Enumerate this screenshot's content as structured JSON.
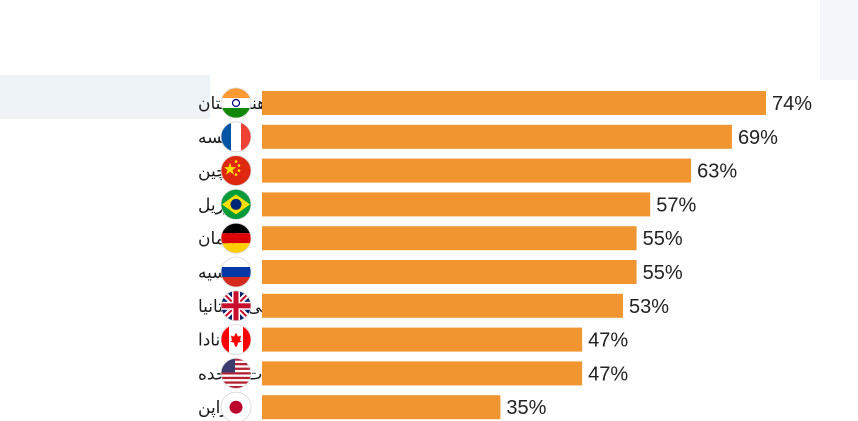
{
  "chart_data": {
    "type": "bar",
    "orientation": "horizontal",
    "title": "",
    "xlabel": "",
    "ylabel": "",
    "xlim": [
      0,
      100
    ],
    "grid": false,
    "legend": "none",
    "bar_color": "#F0952F",
    "categories": [
      "هندوستان",
      "فرانسه",
      "چین",
      "برزیل",
      "آلمان",
      "روسیه",
      "پادشاهی بریتانیا",
      "کانادا",
      "ایالات متحده",
      "ژاپن"
    ],
    "flags": [
      "india-flag-icon",
      "france-flag-icon",
      "china-flag-icon",
      "brazil-flag-icon",
      "germany-flag-icon",
      "russia-flag-icon",
      "uk-flag-icon",
      "canada-flag-icon",
      "usa-flag-icon",
      "japan-flag-icon"
    ],
    "values": [
      74,
      69,
      63,
      57,
      55,
      55,
      53,
      47,
      47,
      35
    ],
    "value_labels": [
      "74%",
      "69%",
      "63%",
      "57%",
      "55%",
      "55%",
      "53%",
      "47%",
      "47%",
      "35%"
    ]
  }
}
